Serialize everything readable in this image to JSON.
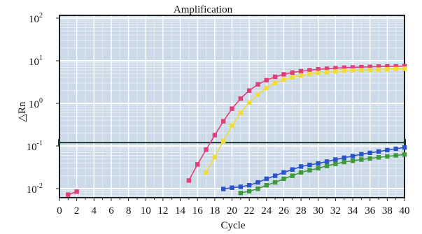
{
  "chart_data": {
    "type": "scatter",
    "title": "Amplification",
    "xlabel": "Cycle",
    "ylabel": "△Rn",
    "x_ticks": [
      "0",
      "2",
      "4",
      "6",
      "8",
      "10",
      "12",
      "14",
      "16",
      "18",
      "20",
      "22",
      "24",
      "26",
      "28",
      "30",
      "32",
      "34",
      "36",
      "38",
      "40"
    ],
    "xlim": [
      0,
      40
    ],
    "y_scale": "log",
    "ylim": [
      0.005,
      100
    ],
    "y_ticks": [
      {
        "base": "10",
        "exp": "2",
        "value": 100
      },
      {
        "base": "10",
        "exp": "1",
        "value": 10
      },
      {
        "base": "10",
        "exp": "0",
        "value": 1
      },
      {
        "base": "10",
        "exp": "-1",
        "value": 0.1
      },
      {
        "base": "10",
        "exp": "-2",
        "value": 0.01
      }
    ],
    "grid": true,
    "threshold": 0.12,
    "colors": {
      "background": "#cddbe8",
      "grid_minor": "#e6eef6",
      "grid_major": "#ffffff",
      "threshold": "#1a3a2a"
    },
    "series": [
      {
        "color": "#e0407a",
        "points": [
          [
            1,
            0.0072
          ],
          [
            2,
            0.0085
          ],
          [
            15,
            0.0155
          ],
          [
            16,
            0.037
          ],
          [
            17,
            0.082
          ],
          [
            18,
            0.18
          ],
          [
            19,
            0.38
          ],
          [
            20,
            0.75
          ],
          [
            21,
            1.3
          ],
          [
            22,
            2.0
          ],
          [
            23,
            2.8
          ],
          [
            24,
            3.5
          ],
          [
            25,
            4.2
          ],
          [
            26,
            4.8
          ],
          [
            27,
            5.3
          ],
          [
            28,
            5.7
          ],
          [
            29,
            6.0
          ],
          [
            30,
            6.3
          ],
          [
            31,
            6.5
          ],
          [
            32,
            6.7
          ],
          [
            33,
            6.9
          ],
          [
            34,
            7.0
          ],
          [
            35,
            7.1
          ],
          [
            36,
            7.2
          ],
          [
            37,
            7.3
          ],
          [
            38,
            7.4
          ],
          [
            39,
            7.4
          ],
          [
            40,
            7.5
          ]
        ]
      },
      {
        "color": "#f0dc3c",
        "points": [
          [
            17,
            0.024
          ],
          [
            18,
            0.055
          ],
          [
            19,
            0.13
          ],
          [
            20,
            0.3
          ],
          [
            21,
            0.6
          ],
          [
            22,
            1.05
          ],
          [
            23,
            1.6
          ],
          [
            24,
            2.3
          ],
          [
            25,
            3.0
          ],
          [
            26,
            3.6
          ],
          [
            27,
            4.1
          ],
          [
            28,
            4.5
          ],
          [
            29,
            4.9
          ],
          [
            30,
            5.2
          ],
          [
            31,
            5.4
          ],
          [
            32,
            5.6
          ],
          [
            33,
            5.8
          ],
          [
            34,
            5.9
          ],
          [
            35,
            6.0
          ],
          [
            36,
            6.1
          ],
          [
            37,
            6.2
          ],
          [
            38,
            6.3
          ],
          [
            39,
            6.4
          ],
          [
            40,
            6.5
          ]
        ]
      },
      {
        "color": "#2b54c8",
        "points": [
          [
            19,
            0.0098
          ],
          [
            20,
            0.0105
          ],
          [
            21,
            0.011
          ],
          [
            22,
            0.012
          ],
          [
            23,
            0.014
          ],
          [
            24,
            0.017
          ],
          [
            25,
            0.02
          ],
          [
            26,
            0.024
          ],
          [
            27,
            0.028
          ],
          [
            28,
            0.033
          ],
          [
            29,
            0.036
          ],
          [
            30,
            0.039
          ],
          [
            31,
            0.043
          ],
          [
            32,
            0.048
          ],
          [
            33,
            0.053
          ],
          [
            34,
            0.058
          ],
          [
            35,
            0.064
          ],
          [
            36,
            0.069
          ],
          [
            37,
            0.074
          ],
          [
            38,
            0.08
          ],
          [
            39,
            0.086
          ],
          [
            40,
            0.092
          ]
        ]
      },
      {
        "color": "#3f9a3c",
        "points": [
          [
            21,
            0.0079
          ],
          [
            22,
            0.0087
          ],
          [
            23,
            0.0099
          ],
          [
            24,
            0.012
          ],
          [
            25,
            0.014
          ],
          [
            26,
            0.017
          ],
          [
            27,
            0.02
          ],
          [
            28,
            0.024
          ],
          [
            29,
            0.027
          ],
          [
            30,
            0.03
          ],
          [
            31,
            0.034
          ],
          [
            32,
            0.038
          ],
          [
            33,
            0.042
          ],
          [
            34,
            0.045
          ],
          [
            35,
            0.048
          ],
          [
            36,
            0.051
          ],
          [
            37,
            0.054
          ],
          [
            38,
            0.057
          ],
          [
            39,
            0.06
          ],
          [
            40,
            0.063
          ]
        ]
      }
    ]
  }
}
